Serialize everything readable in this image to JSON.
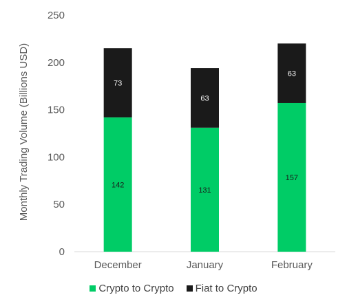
{
  "chart_data": {
    "type": "bar",
    "stacked": true,
    "categories": [
      "December",
      "January",
      "February"
    ],
    "series": [
      {
        "name": "Crypto to Crypto",
        "values": [
          142,
          131,
          157
        ],
        "color": "#00cc66",
        "label_color": "#1a1a1a"
      },
      {
        "name": "Fiat to Crypto",
        "values": [
          73,
          63,
          63
        ],
        "color": "#1a1a1a",
        "label_color": "#ffffff"
      }
    ],
    "title": "",
    "xlabel": "",
    "ylabel": "Monthly Trading Volume (Billions USD)",
    "ylim": [
      0,
      250
    ],
    "yticks": [
      0,
      50,
      100,
      150,
      200,
      250
    ],
    "grid": false,
    "legend_position": "bottom"
  }
}
